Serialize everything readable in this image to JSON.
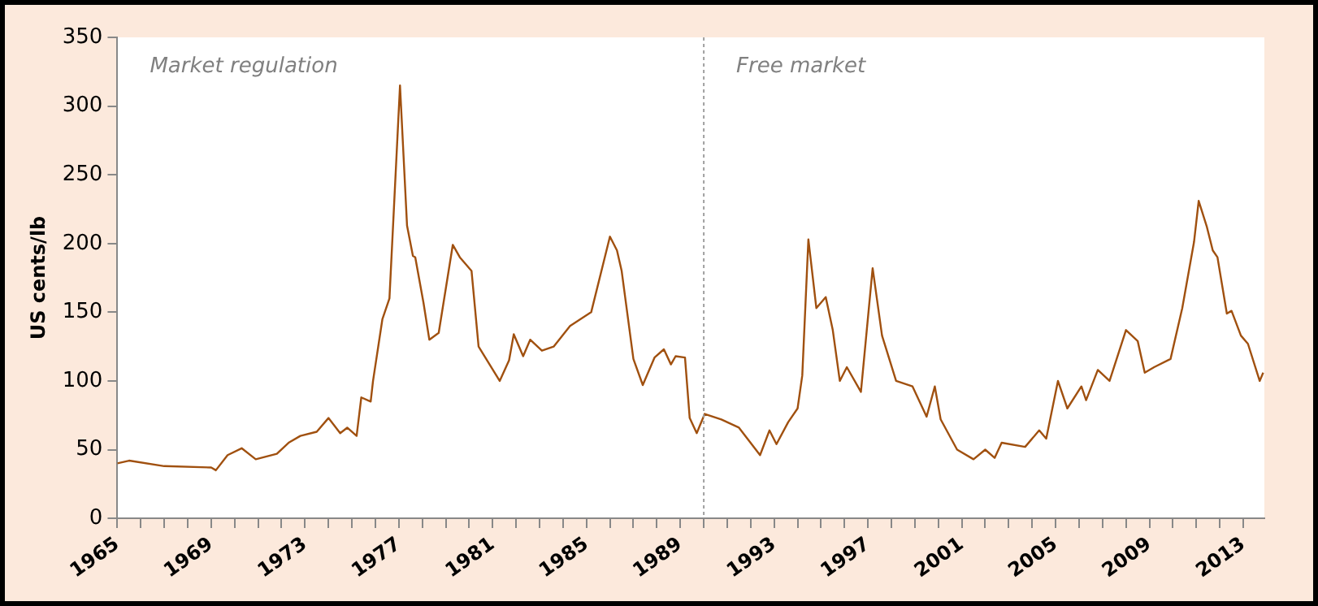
{
  "chart_data": {
    "type": "line",
    "ylabel": "US cents/lb",
    "annotations": [
      "Market regulation",
      "Free market"
    ],
    "xlim": [
      1965,
      2013.9
    ],
    "ylim": [
      0,
      350
    ],
    "yticks": [
      0,
      50,
      100,
      150,
      200,
      250,
      300,
      350
    ],
    "xticks": [
      1965,
      {
        "value": 1966,
        "label": null
      },
      {
        "value": 1967,
        "label": null
      },
      {
        "value": 1968,
        "label": null
      },
      1969,
      {
        "value": 1970,
        "label": null
      },
      {
        "value": 1971,
        "label": null
      },
      {
        "value": 1972,
        "label": null
      },
      1973,
      {
        "value": 1974,
        "label": null
      },
      {
        "value": 1975,
        "label": null
      },
      {
        "value": 1976,
        "label": null
      },
      1977,
      {
        "value": 1978,
        "label": null
      },
      {
        "value": 1979,
        "label": null
      },
      {
        "value": 1980,
        "label": null
      },
      1981,
      {
        "value": 1982,
        "label": null
      },
      {
        "value": 1983,
        "label": null
      },
      {
        "value": 1984,
        "label": null
      },
      1985,
      {
        "value": 1986,
        "label": null
      },
      {
        "value": 1987,
        "label": null
      },
      {
        "value": 1988,
        "label": null
      },
      1989,
      {
        "value": 1990,
        "label": null
      },
      {
        "value": 1991,
        "label": null
      },
      {
        "value": 1992,
        "label": null
      },
      1993,
      {
        "value": 1994,
        "label": null
      },
      {
        "value": 1995,
        "label": null
      },
      {
        "value": 1996,
        "label": null
      },
      1997,
      {
        "value": 1998,
        "label": null
      },
      {
        "value": 1999,
        "label": null
      },
      {
        "value": 2000,
        "label": null
      },
      2001,
      {
        "value": 2002,
        "label": null
      },
      {
        "value": 2003,
        "label": null
      },
      {
        "value": 2004,
        "label": null
      },
      2005,
      {
        "value": 2006,
        "label": null
      },
      {
        "value": 2007,
        "label": null
      },
      {
        "value": 2008,
        "label": null
      },
      2009,
      {
        "value": 2010,
        "label": null
      },
      {
        "value": 2011,
        "label": null
      },
      {
        "value": 2012,
        "label": null
      },
      2013
    ],
    "ref_lines": [
      {
        "axis": "x",
        "value": 1990,
        "color": "#a0a0a0",
        "line_style": "dotted"
      }
    ],
    "grid": false,
    "legend": false,
    "marker": "none",
    "line_style": "solid",
    "series": [
      {
        "color": "#a0500f",
        "x": [
          1965,
          1965.5,
          1967,
          1969,
          1969.2,
          1969.7,
          1970.3,
          1970.9,
          1971.8,
          1972.3,
          1972.8,
          1973.5,
          1974,
          1974.5,
          1974.8,
          1975.2,
          1975.4,
          1975.8,
          1975.9,
          1976.3,
          1976.6,
          1977.05,
          1977.35,
          1977.6,
          1977.7,
          1978.05,
          1978.3,
          1978.7,
          1979.3,
          1979.6,
          1980.1,
          1980.4,
          1981.3,
          1981.7,
          1981.9,
          1982.3,
          1982.6,
          1983.1,
          1983.6,
          1984.3,
          1985.2,
          1986,
          1986.3,
          1986.5,
          1987,
          1987.4,
          1987.9,
          1988.3,
          1988.6,
          1988.8,
          1989.2,
          1989.4,
          1989.7,
          1990.04,
          1990.75,
          1991.5,
          1992.4,
          1992.8,
          1993.1,
          1993.6,
          1994,
          1994.2,
          1994.46,
          1994.8,
          1995.2,
          1995.5,
          1995.8,
          1996.1,
          1996.7,
          1997.2,
          1997.6,
          1998.2,
          1998.9,
          1999.5,
          1999.85,
          2000.1,
          2000.8,
          2001.5,
          2002,
          2002.4,
          2002.7,
          2003.7,
          2004.3,
          2004.6,
          2005.1,
          2005.5,
          2006.1,
          2006.3,
          2006.8,
          2007.3,
          2008,
          2008.5,
          2008.8,
          2009.2,
          2009.9,
          2010.4,
          2010.9,
          2011.1,
          2011.45,
          2011.7,
          2011.9,
          2012.3,
          2012.5,
          2012.9,
          2013.2,
          2013.7,
          2013.85
        ],
        "values": [
          40,
          42,
          38,
          37,
          35,
          46,
          51,
          43,
          47,
          55,
          60,
          63,
          73,
          62,
          66,
          60,
          88,
          85,
          100,
          145,
          160,
          315,
          213,
          191,
          190,
          157,
          130,
          135,
          199,
          190,
          180,
          125,
          100,
          115,
          134,
          118,
          130,
          122,
          125,
          140,
          150,
          205,
          195,
          180,
          116,
          97,
          117,
          123,
          112,
          118,
          117,
          73,
          62,
          76,
          72,
          66,
          46,
          64,
          54,
          70,
          80,
          104,
          203,
          153,
          161,
          137,
          100,
          110,
          92,
          182,
          133,
          100,
          96,
          74,
          96,
          72,
          50,
          43,
          50,
          44,
          55,
          52,
          64,
          58,
          100,
          80,
          96,
          86,
          108,
          100,
          137,
          129,
          106,
          110,
          116,
          153,
          201,
          231,
          212,
          195,
          190,
          149,
          151,
          133,
          127,
          100,
          106
        ]
      }
    ]
  }
}
